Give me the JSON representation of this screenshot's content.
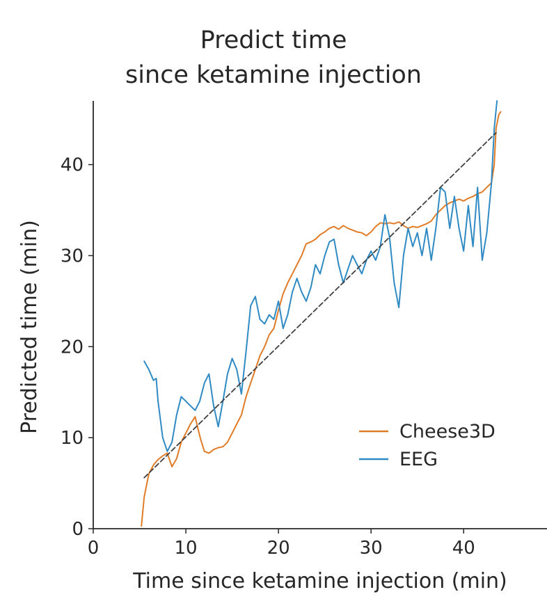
{
  "chart_data": {
    "type": "line",
    "title_lines": [
      "Predict time",
      "since ketamine injection"
    ],
    "xlabel": "Time since ketamine injection (min)",
    "ylabel": "Predicted time (min)",
    "xlim": [
      0,
      49
    ],
    "ylim": [
      0,
      47
    ],
    "xticks": [
      0,
      10,
      20,
      30,
      40
    ],
    "yticks": [
      0,
      10,
      20,
      30,
      40
    ],
    "grid": false,
    "legend_position": "lower-right",
    "series": [
      {
        "name": "Cheese3D",
        "color": "#e07b28",
        "x": [
          5.2,
          5.5,
          6.0,
          6.5,
          7.0,
          7.5,
          8.0,
          8.5,
          9.0,
          9.5,
          10.0,
          10.5,
          11.0,
          11.3,
          11.6,
          12.0,
          12.5,
          13.0,
          13.5,
          14.0,
          14.5,
          15.0,
          15.5,
          16.0,
          16.5,
          17.0,
          17.5,
          18.0,
          18.5,
          19.0,
          19.5,
          20.0,
          20.5,
          21.0,
          21.5,
          22.0,
          22.5,
          23.0,
          23.5,
          24.0,
          24.5,
          25.0,
          25.5,
          26.0,
          26.5,
          27.0,
          27.5,
          28.0,
          28.5,
          29.0,
          29.5,
          30.0,
          30.5,
          31.0,
          31.5,
          32.0,
          32.5,
          33.0,
          33.5,
          34.0,
          34.5,
          35.0,
          35.5,
          36.0,
          36.5,
          37.0,
          37.5,
          38.0,
          38.5,
          39.0,
          39.5,
          40.0,
          40.5,
          41.0,
          41.5,
          42.0,
          42.5,
          43.0,
          43.3,
          43.5,
          43.8,
          44.0
        ],
        "y": [
          0.3,
          3.5,
          6.0,
          7.0,
          7.6,
          8.0,
          8.3,
          6.8,
          7.7,
          9.5,
          10.5,
          11.5,
          12.3,
          11.0,
          9.8,
          8.5,
          8.3,
          8.7,
          8.9,
          9.0,
          9.5,
          10.5,
          11.5,
          12.5,
          14.5,
          16.0,
          17.5,
          19.0,
          20.0,
          21.3,
          22.0,
          24.0,
          25.8,
          27.0,
          28.0,
          29.0,
          30.0,
          31.3,
          31.5,
          31.8,
          32.3,
          32.6,
          33.0,
          33.2,
          32.9,
          33.3,
          33.0,
          32.8,
          32.6,
          32.5,
          32.2,
          32.6,
          33.2,
          33.6,
          33.5,
          33.6,
          33.5,
          33.7,
          33.3,
          33.0,
          33.2,
          33.1,
          33.3,
          33.5,
          33.8,
          34.5,
          35.0,
          35.5,
          35.8,
          36.0,
          36.2,
          36.0,
          36.3,
          36.5,
          36.8,
          37.0,
          37.5,
          38.0,
          40.0,
          44.0,
          45.5,
          45.8
        ]
      },
      {
        "name": "EEG",
        "color": "#2f8ac4",
        "x": [
          5.5,
          6.0,
          6.5,
          6.8,
          7.0,
          7.5,
          8.0,
          8.5,
          9.0,
          9.5,
          10.0,
          10.5,
          11.0,
          11.5,
          12.0,
          12.5,
          13.0,
          13.5,
          14.0,
          14.5,
          15.0,
          15.5,
          16.0,
          16.5,
          17.0,
          17.5,
          18.0,
          18.5,
          19.0,
          19.5,
          20.0,
          20.5,
          21.0,
          21.5,
          22.0,
          22.5,
          23.0,
          23.5,
          24.0,
          24.5,
          25.0,
          25.5,
          26.0,
          26.5,
          27.0,
          27.5,
          28.0,
          28.5,
          29.0,
          29.5,
          30.0,
          30.5,
          31.0,
          31.5,
          32.0,
          32.5,
          33.0,
          33.5,
          34.0,
          34.5,
          35.0,
          35.5,
          36.0,
          36.5,
          37.0,
          37.5,
          38.0,
          38.5,
          39.0,
          39.5,
          40.0,
          40.5,
          41.0,
          41.5,
          42.0,
          42.5,
          43.0,
          43.3,
          43.6
        ],
        "y": [
          18.4,
          17.5,
          16.3,
          16.5,
          14.0,
          10.0,
          8.5,
          9.5,
          12.5,
          14.5,
          14.0,
          13.5,
          13.0,
          14.0,
          16.0,
          17.0,
          13.5,
          11.2,
          14.0,
          17.0,
          18.7,
          17.5,
          14.8,
          19.5,
          24.5,
          25.5,
          23.0,
          22.5,
          23.5,
          23.0,
          25.0,
          22.0,
          23.5,
          26.0,
          27.5,
          26.0,
          25.0,
          26.5,
          29.0,
          28.0,
          30.0,
          31.5,
          31.8,
          29.0,
          27.0,
          28.5,
          30.0,
          29.0,
          28.0,
          29.5,
          30.5,
          29.5,
          31.0,
          34.5,
          32.0,
          27.0,
          24.3,
          30.0,
          33.0,
          31.0,
          32.5,
          30.0,
          33.0,
          29.5,
          33.0,
          37.5,
          37.0,
          33.0,
          36.5,
          33.0,
          30.5,
          35.5,
          31.0,
          37.5,
          29.5,
          32.5,
          38.0,
          44.0,
          47.0
        ]
      },
      {
        "name": "",
        "role": "reference",
        "color": "#404040",
        "dashed": true,
        "x": [
          5.5,
          43.5
        ],
        "y": [
          5.6,
          43.5
        ]
      }
    ]
  }
}
